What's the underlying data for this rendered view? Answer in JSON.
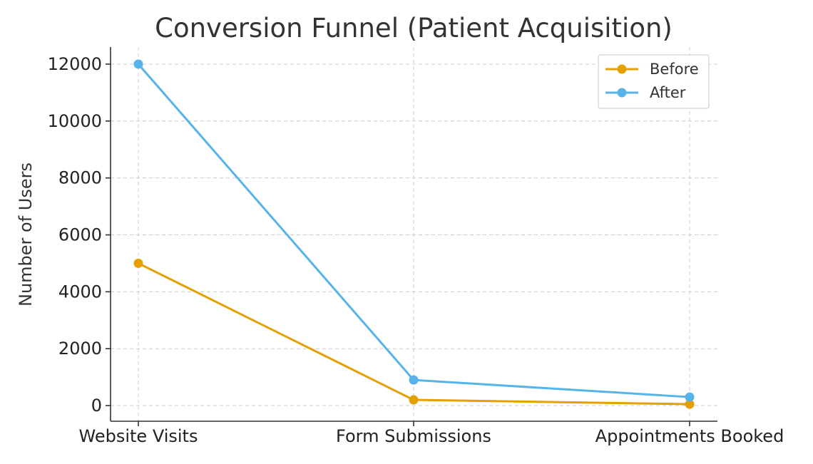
{
  "chart_data": {
    "type": "line",
    "title": "Conversion Funnel (Patient Acquisition)",
    "xlabel": "",
    "ylabel": "Number of Users",
    "categories": [
      "Website Visits",
      "Form Submissions",
      "Appointments Booked"
    ],
    "series": [
      {
        "name": "Before",
        "values": [
          5000,
          200,
          50
        ],
        "color": "#E69F00"
      },
      {
        "name": "After",
        "values": [
          12000,
          900,
          300
        ],
        "color": "#56B4E9"
      }
    ],
    "ylim": [
      -550,
      12600
    ],
    "yticks": [
      0,
      2000,
      4000,
      6000,
      8000,
      10000,
      12000
    ],
    "grid": true,
    "legend": {
      "placement": "top-right"
    }
  }
}
